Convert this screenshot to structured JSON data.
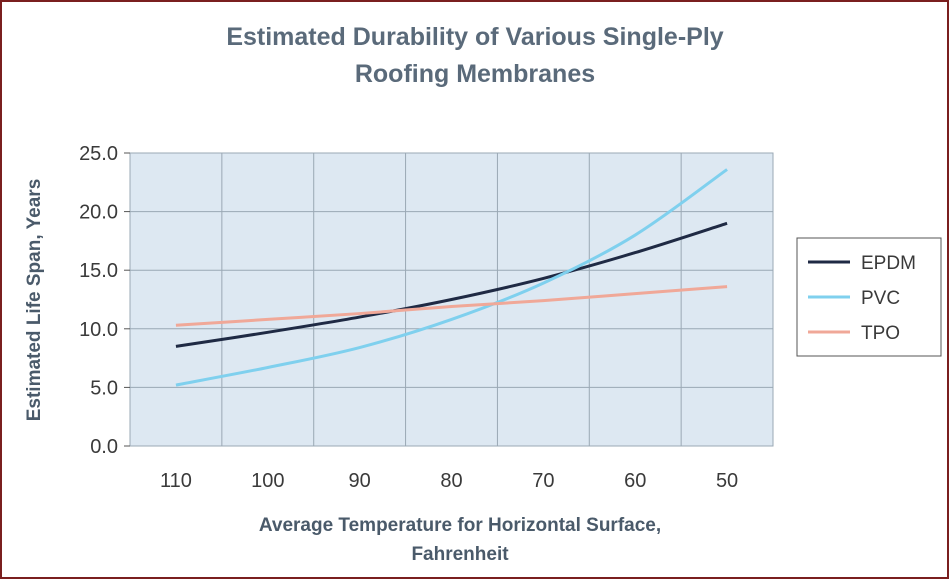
{
  "chart_data": {
    "type": "line",
    "title": [
      "Estimated Durability of Various Single-Ply",
      "Roofing Membranes"
    ],
    "xlabel": [
      "Average Temperature for Horizontal Surface,",
      "Fahrenheit"
    ],
    "ylabel": "Estimated Life Span, Years",
    "categories": [
      "110",
      "100",
      "90",
      "80",
      "70",
      "60",
      "50"
    ],
    "yticks": [
      "0.0",
      "5.0",
      "10.0",
      "15.0",
      "20.0",
      "25.0"
    ],
    "ylim": [
      0,
      25
    ],
    "grid": true,
    "legend_position": "right",
    "series": [
      {
        "name": "EPDM",
        "color": "#1f2a44",
        "values": [
          8.5,
          9.7,
          11.0,
          12.5,
          14.3,
          16.5,
          19.0
        ]
      },
      {
        "name": "PVC",
        "color": "#7fd0ee",
        "values": [
          5.2,
          6.7,
          8.4,
          10.8,
          13.9,
          18.0,
          23.6
        ]
      },
      {
        "name": "TPO",
        "color": "#f0a898",
        "values": [
          10.3,
          10.8,
          11.3,
          11.9,
          12.4,
          13.0,
          13.6
        ]
      }
    ]
  }
}
